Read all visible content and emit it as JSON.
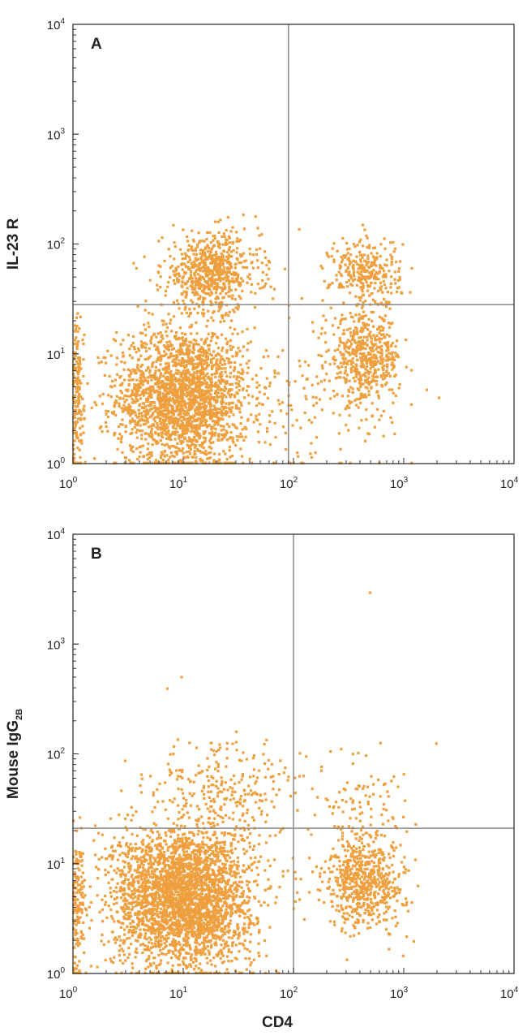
{
  "figure": {
    "dot_color": "#EE9F3E",
    "frame_color": "#333333",
    "gate_color": "#8A8A8A"
  },
  "chart_data": [
    {
      "type": "scatter",
      "panel_label": "A",
      "xlabel": "",
      "ylabel": "IL-23 R",
      "xscale": "log",
      "yscale": "log",
      "xlim": [
        1,
        10000
      ],
      "ylim": [
        1,
        10000
      ],
      "x_ticks": [
        1,
        10,
        100,
        1000,
        10000
      ],
      "y_ticks": [
        1,
        10,
        100,
        1000,
        10000
      ],
      "gates": {
        "x": 90,
        "y": 28
      },
      "populations": [
        {
          "center": [
            10,
            4
          ],
          "spread": [
            0.3,
            0.32
          ],
          "count": 2200
        },
        {
          "center": [
            18,
            55
          ],
          "spread": [
            0.22,
            0.18
          ],
          "count": 650
        },
        {
          "center": [
            450,
            9
          ],
          "spread": [
            0.16,
            0.2
          ],
          "count": 520
        },
        {
          "center": [
            450,
            55
          ],
          "spread": [
            0.16,
            0.16
          ],
          "count": 300
        },
        {
          "center": [
            1.1,
            4
          ],
          "spread": [
            0.03,
            0.35
          ],
          "count": 160
        },
        {
          "center": [
            150,
            3
          ],
          "spread": [
            0.35,
            0.35
          ],
          "count": 120
        }
      ]
    },
    {
      "type": "scatter",
      "panel_label": "B",
      "xlabel": "CD4",
      "ylabel": "Mouse IgG",
      "ylabel_subscript": "2B",
      "xscale": "log",
      "yscale": "log",
      "xlim": [
        1,
        10000
      ],
      "ylim": [
        1,
        10000
      ],
      "x_ticks": [
        1,
        10,
        100,
        1000,
        10000
      ],
      "y_ticks": [
        1,
        10,
        100,
        1000,
        10000
      ],
      "gates": {
        "x": 100,
        "y": 21
      },
      "populations": [
        {
          "center": [
            10,
            5
          ],
          "spread": [
            0.32,
            0.32
          ],
          "count": 3000
        },
        {
          "center": [
            450,
            7
          ],
          "spread": [
            0.18,
            0.22
          ],
          "count": 650
        },
        {
          "center": [
            25,
            45
          ],
          "spread": [
            0.35,
            0.25
          ],
          "count": 260
        },
        {
          "center": [
            1.1,
            4
          ],
          "spread": [
            0.03,
            0.35
          ],
          "count": 150
        },
        {
          "center": [
            400,
            40
          ],
          "spread": [
            0.25,
            0.2
          ],
          "count": 80
        },
        {
          "center": [
            500,
            2900
          ],
          "spread": [
            0.01,
            0.01
          ],
          "count": 1
        },
        {
          "center": [
            8,
            480
          ],
          "spread": [
            0.05,
            0.05
          ],
          "count": 2
        }
      ]
    }
  ]
}
